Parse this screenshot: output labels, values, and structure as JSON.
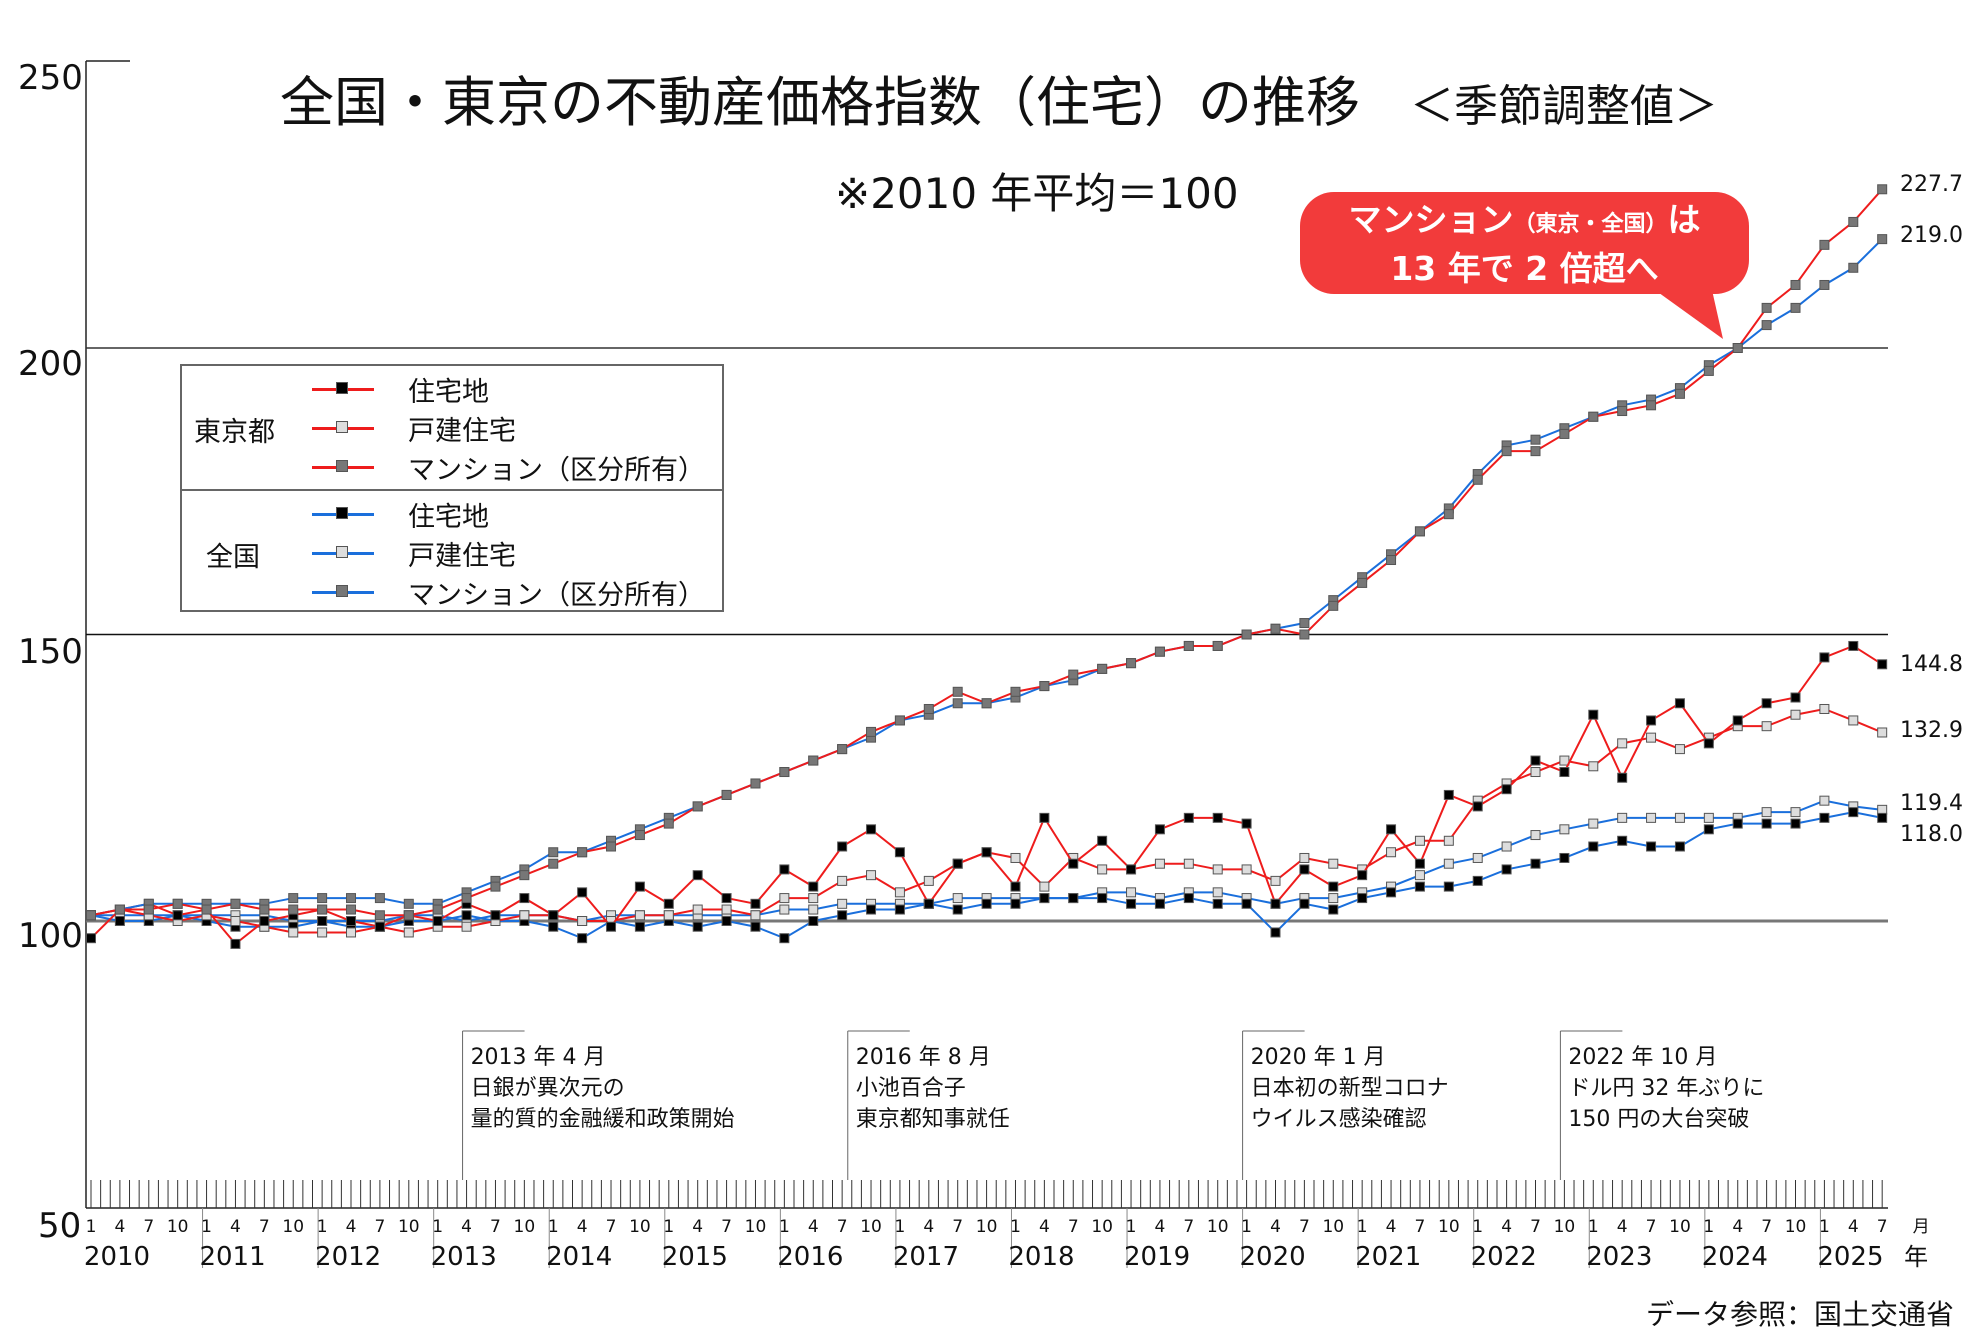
{
  "title": "全国・東京の不動産価格指数（住宅）の推移",
  "subtitle": "＜季節調整値＞",
  "note": "※2010 年平均＝100",
  "callout": {
    "line1_a": "マンション",
    "line1_b": "（東京・全国）",
    "line1_c": "は",
    "line2": "13 年で 2 倍超へ",
    "color": "#f23b3b"
  },
  "source": "データ参照：国土交通省",
  "legend": {
    "groups": [
      {
        "name": "東京都",
        "items": [
          "住宅地",
          "戸建住宅",
          "マンション（区分所有）"
        ]
      },
      {
        "name": "全国",
        "items": [
          "住宅地",
          "戸建住宅",
          "マンション（区分所有）"
        ]
      }
    ]
  },
  "annotations": [
    {
      "date": "2013-04",
      "lines": [
        "2013 年 4 月",
        "日銀が異次元の",
        "量的質的金融緩和政策開始"
      ]
    },
    {
      "date": "2016-08",
      "lines": [
        "2016 年 8 月",
        "小池百合子",
        "東京都知事就任"
      ]
    },
    {
      "date": "2020-01",
      "lines": [
        "2020 年 1 月",
        "日本初の新型コロナ",
        "ウイルス感染確認"
      ]
    },
    {
      "date": "2022-10",
      "lines": [
        "2022 年 10 月",
        "ドル円 32 年ぶりに",
        "150 円の大台突破"
      ]
    }
  ],
  "chart_data": {
    "type": "line",
    "title": "全国・東京の不動産価格指数（住宅）の推移",
    "x_start": "2010-01",
    "x_end": "2025-07",
    "x_sampling": "quarterly (Jan, Apr, Jul, Oct)",
    "ylim": [
      50,
      250
    ],
    "yticks": [
      50,
      100,
      150,
      200,
      250
    ],
    "gridlines": [
      100,
      150,
      200
    ],
    "month_tick_labels": [
      "1",
      "4",
      "7",
      "10"
    ],
    "last_month_labels": [
      "1",
      "4",
      "7",
      "月"
    ],
    "year_labels": [
      "2010",
      "2011",
      "2012",
      "2013",
      "2014",
      "2015",
      "2016",
      "2017",
      "2018",
      "2019",
      "2020",
      "2021",
      "2022",
      "2023",
      "2024",
      "2025"
    ],
    "year_unit": "年",
    "colors": {
      "tokyo": "#ee1c1c",
      "national": "#1a6fdc",
      "land_marker": "#000000",
      "house_marker": "#dddddd",
      "mansion_marker": "#777777"
    },
    "series": [
      {
        "name": "東京都 住宅地",
        "region": "tokyo",
        "kind": "land",
        "end_label": "144.8",
        "values": [
          97,
          102,
          103,
          101,
          102,
          96,
          100,
          101,
          102,
          100,
          99,
          101,
          100,
          103,
          101,
          104,
          101,
          105,
          99,
          106,
          103,
          108,
          104,
          103,
          109,
          106,
          113,
          116,
          112,
          103,
          110,
          112,
          106,
          118,
          110,
          114,
          109,
          116,
          118,
          118,
          117,
          103,
          109,
          106,
          108,
          116,
          110,
          122,
          120,
          123,
          128,
          126,
          136,
          125,
          135,
          138,
          131,
          135,
          138,
          139,
          146,
          148,
          144.8
        ]
      },
      {
        "name": "東京都 戸建住宅",
        "region": "tokyo",
        "kind": "house",
        "end_label": "132.9",
        "values": [
          101,
          102,
          101,
          100,
          101,
          100,
          99,
          98,
          98,
          98,
          99,
          98,
          99,
          99,
          100,
          101,
          101,
          100,
          100,
          101,
          101,
          102,
          102,
          101,
          104,
          104,
          107,
          108,
          105,
          107,
          110,
          112,
          111,
          106,
          111,
          109,
          109,
          110,
          110,
          109,
          109,
          107,
          111,
          110,
          109,
          112,
          114,
          114,
          121,
          124,
          126,
          128,
          127,
          131,
          132,
          130,
          132,
          134,
          134,
          136,
          137,
          135,
          132.9
        ]
      },
      {
        "name": "東京都 マンション（区分所有）",
        "region": "tokyo",
        "kind": "mansion",
        "end_label": "227.7",
        "values": [
          101,
          102,
          102,
          103,
          102,
          103,
          102,
          102,
          102,
          102,
          101,
          101,
          102,
          104,
          106,
          108,
          110,
          112,
          113,
          115,
          117,
          120,
          122,
          124,
          126,
          128,
          130,
          133,
          135,
          137,
          140,
          138,
          140,
          141,
          143,
          144,
          145,
          147,
          148,
          148,
          150,
          151,
          150,
          155,
          159,
          163,
          168,
          171,
          177,
          182,
          182,
          185,
          188,
          189,
          190,
          192,
          196,
          200,
          207,
          211,
          218,
          222,
          227.7
        ]
      },
      {
        "name": "全国 住宅地",
        "region": "national",
        "kind": "land",
        "end_label": "118.0",
        "values": [
          101,
          100,
          100,
          101,
          100,
          99,
          99,
          99,
          100,
          99,
          99,
          100,
          100,
          101,
          100,
          100,
          99,
          97,
          100,
          99,
          100,
          99,
          100,
          99,
          97,
          100,
          101,
          102,
          102,
          103,
          102,
          103,
          103,
          104,
          104,
          104,
          103,
          103,
          104,
          103,
          103,
          98,
          103,
          102,
          104,
          105,
          106,
          106,
          107,
          109,
          110,
          111,
          113,
          114,
          113,
          113,
          116,
          117,
          117,
          117,
          118,
          119,
          118.0
        ]
      },
      {
        "name": "全国 戸建住宅",
        "region": "national",
        "kind": "house",
        "end_label": "119.4",
        "values": [
          101,
          101,
          101,
          101,
          101,
          101,
          101,
          100,
          100,
          100,
          100,
          101,
          101,
          100,
          101,
          101,
          101,
          100,
          101,
          101,
          101,
          101,
          101,
          101,
          102,
          102,
          103,
          103,
          103,
          103,
          104,
          104,
          104,
          104,
          104,
          105,
          105,
          104,
          105,
          105,
          104,
          103,
          104,
          104,
          105,
          106,
          108,
          110,
          111,
          113,
          115,
          116,
          117,
          118,
          118,
          118,
          118,
          118,
          119,
          119,
          121,
          120,
          119.4
        ]
      },
      {
        "name": "全国 マンション（区分所有）",
        "region": "national",
        "kind": "mansion",
        "end_label": "219.0",
        "values": [
          101,
          102,
          103,
          103,
          103,
          103,
          103,
          104,
          104,
          104,
          104,
          103,
          103,
          105,
          107,
          109,
          112,
          112,
          114,
          116,
          118,
          120,
          122,
          124,
          126,
          128,
          130,
          132,
          135,
          136,
          138,
          138,
          139,
          141,
          142,
          144,
          145,
          147,
          148,
          148,
          150,
          151,
          152,
          156,
          160,
          164,
          168,
          172,
          178,
          183,
          184,
          186,
          188,
          190,
          191,
          193,
          197,
          200,
          204,
          207,
          211,
          214,
          219.0
        ]
      }
    ]
  }
}
